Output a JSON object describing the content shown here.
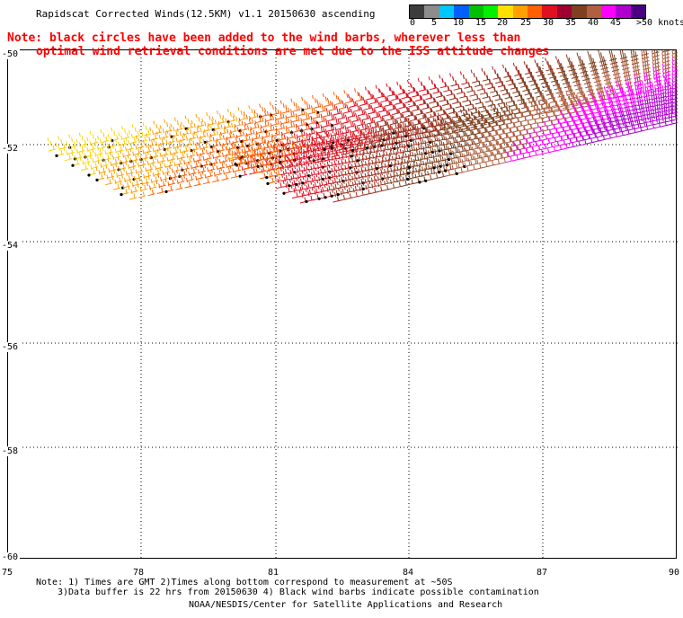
{
  "title": "Rapidscat Corrected Winds(12.5KM) v1.1 20150630 ascending",
  "note": {
    "line1": "Note: black circles have been added to the wind barbs, wherever less than",
    "line2": "optimal wind retrieval conditions are met due to the ISS attitude changes"
  },
  "legend": {
    "labels": [
      "0",
      "5",
      "10",
      "15",
      "20",
      "25",
      "30",
      "35",
      "40",
      "45",
      ">50 knots"
    ],
    "colors": [
      "#3c3c3c",
      "#8c8c8c",
      "#00c8ff",
      "#0060ff",
      "#00c000",
      "#00f000",
      "#ffe000",
      "#ffa000",
      "#ff6000",
      "#e01020",
      "#a00030",
      "#804020",
      "#b06040",
      "#ff00ff",
      "#b000d0",
      "#4a0080"
    ]
  },
  "axes": {
    "y_ticks": [
      "-50",
      "-52",
      "-54",
      "-56",
      "-58",
      "-60"
    ],
    "x_ticks": [
      "75",
      "78",
      "81",
      "84",
      "87",
      "90"
    ]
  },
  "footnotes": {
    "line1": "Note: 1) Times are GMT 2)Times along bottom correspond to measurement at ~50S",
    "line2": "3)Data buffer is 22 hrs from 20150630 4) Black wind barbs indicate possible contamination",
    "line3": "NOAA/NESDIS/Center for Satellite Applications and Research"
  }
}
